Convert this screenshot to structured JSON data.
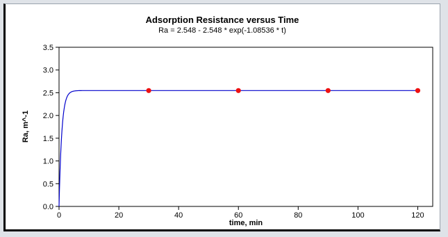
{
  "chart_data": {
    "type": "line",
    "title": "Adsorption Resistance versus Time",
    "subtitle": "Ra = 2.548 - 2.548 * exp(-1.08536 * t)",
    "xlabel": "time, min",
    "ylabel": "Ra, m^-1",
    "xlim": [
      0,
      125
    ],
    "ylim": [
      0,
      3.5
    ],
    "x_ticks": [
      0,
      20,
      40,
      60,
      80,
      100,
      120
    ],
    "y_ticks": [
      0.0,
      0.5,
      1.0,
      1.5,
      2.0,
      2.5,
      3.0,
      3.5
    ],
    "x_tick_labels": [
      "0",
      "20",
      "40",
      "60",
      "80",
      "100",
      "120"
    ],
    "y_tick_labels": [
      "0.0",
      "0.5",
      "1.0",
      "1.5",
      "2.0",
      "2.5",
      "3.0",
      "3.5"
    ],
    "grid": false,
    "legend": "none",
    "model": {
      "a": 2.548,
      "k": 1.08536
    },
    "fit_x_range": [
      0,
      120
    ],
    "series": [
      {
        "type": "line",
        "color": "#0000cc"
      },
      {
        "type": "scatter",
        "color": "#ee1111",
        "x": [
          30,
          60,
          90,
          120
        ],
        "y": [
          2.548,
          2.548,
          2.548,
          2.548
        ]
      }
    ]
  }
}
